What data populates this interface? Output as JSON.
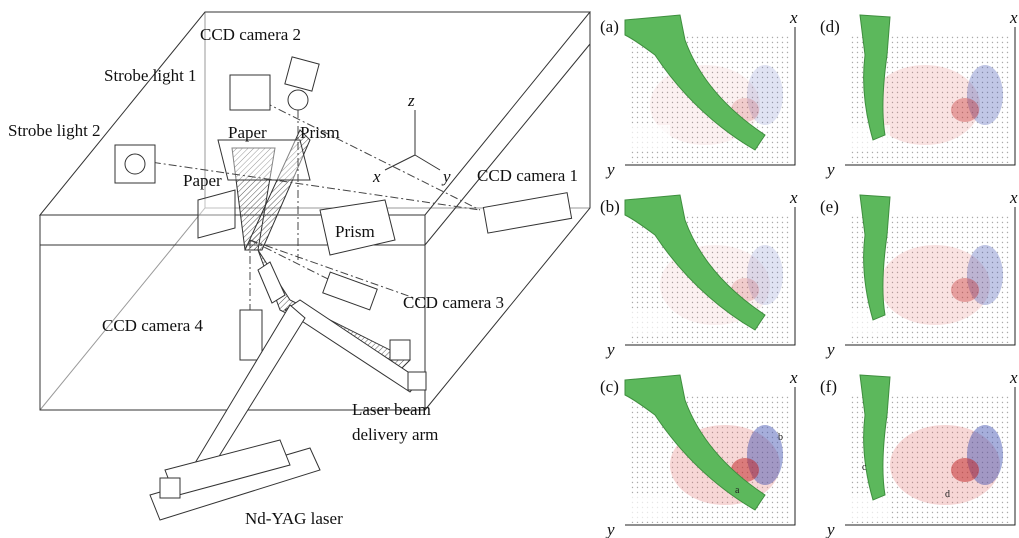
{
  "setup": {
    "ccd_camera_2": "CCD camera 2",
    "strobe_light_1": "Strobe light 1",
    "strobe_light_2": "Strobe light 2",
    "paper_1": "Paper",
    "prism_1": "Prism",
    "paper_2": "Paper",
    "axis_z": "z",
    "axis_x": "x",
    "axis_y": "y",
    "ccd_camera_1": "CCD camera 1",
    "prism_2": "Prism",
    "ccd_camera_3": "CCD camera 3",
    "ccd_camera_4": "CCD camera 4",
    "laser_arm": [
      "Laser beam",
      "delivery arm"
    ],
    "laser": "Nd-YAG laser"
  },
  "panels": [
    {
      "label": "(a)",
      "x_axis": "x",
      "y_axis": "y"
    },
    {
      "label": "(b)",
      "x_axis": "x",
      "y_axis": "y"
    },
    {
      "label": "(c)",
      "x_axis": "x",
      "y_axis": "y",
      "annotations": [
        "b",
        "a"
      ]
    },
    {
      "label": "(d)",
      "x_axis": "x",
      "y_axis": "y"
    },
    {
      "label": "(e)",
      "x_axis": "x",
      "y_axis": "y"
    },
    {
      "label": "(f)",
      "x_axis": "x",
      "y_axis": "y",
      "annotations": [
        "c",
        "d"
      ]
    }
  ]
}
